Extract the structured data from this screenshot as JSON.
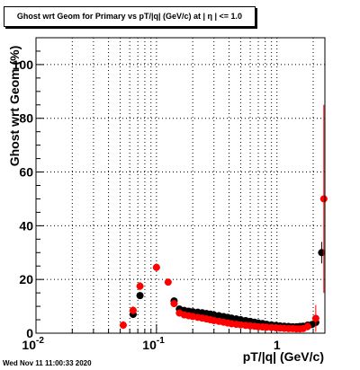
{
  "chart_data": {
    "type": "scatter",
    "title": "Ghost wrt Geom for Primary vs pT/|q| (GeV/c) at |  η | <= 1.0",
    "xlabel": "pT/|q| (GeV/c)",
    "ylabel": "Ghost wrt Geom (%)",
    "x_scale": "log",
    "xlim": [
      0.01,
      2.5
    ],
    "ylim": [
      0,
      110
    ],
    "grid": true,
    "x_tick_labels": [
      "10",
      "10",
      "1"
    ],
    "x_tick_exponents": [
      "-2",
      "-1",
      ""
    ],
    "y_tick_labels": [
      "0",
      "20",
      "40",
      "60",
      "80",
      "100"
    ],
    "y_ticks": [
      0,
      20,
      40,
      60,
      80,
      100
    ],
    "series": [
      {
        "color": "#000000",
        "marker": "circle",
        "x": [
          0.064,
          0.073,
          0.14,
          0.155,
          0.17,
          0.185,
          0.2,
          0.22,
          0.24,
          0.26,
          0.28,
          0.3,
          0.33,
          0.36,
          0.39,
          0.42,
          0.46,
          0.5,
          0.55,
          0.6,
          0.65,
          0.7,
          0.76,
          0.82,
          0.9,
          0.98,
          1.06,
          1.15,
          1.25,
          1.35,
          1.45,
          1.55,
          1.65,
          1.8,
          1.95,
          2.1,
          2.35
        ],
        "y": [
          7.0,
          14.0,
          12.0,
          9.0,
          8.5,
          8.2,
          8.0,
          7.8,
          7.6,
          7.3,
          7.1,
          6.8,
          6.5,
          6.2,
          5.9,
          5.6,
          5.3,
          5.0,
          4.7,
          4.4,
          4.1,
          3.8,
          3.6,
          3.3,
          3.1,
          2.9,
          2.7,
          2.6,
          2.5,
          2.4,
          2.4,
          2.5,
          2.6,
          3.0,
          3.2,
          4.0,
          30.0
        ],
        "y_err": [
          0.8,
          1.0,
          0.7,
          0.5,
          0.4,
          0.4,
          0.4,
          0.4,
          0.3,
          0.3,
          0.3,
          0.3,
          0.3,
          0.3,
          0.3,
          0.3,
          0.3,
          0.3,
          0.3,
          0.3,
          0.3,
          0.3,
          0.3,
          0.3,
          0.3,
          0.3,
          0.3,
          0.3,
          0.3,
          0.3,
          0.3,
          0.3,
          0.4,
          0.5,
          0.6,
          1.5,
          4.0
        ]
      },
      {
        "color": "#ff0000",
        "marker": "circle",
        "x": [
          0.053,
          0.064,
          0.073,
          0.1,
          0.125,
          0.14,
          0.155,
          0.17,
          0.185,
          0.2,
          0.22,
          0.24,
          0.26,
          0.28,
          0.3,
          0.33,
          0.36,
          0.39,
          0.42,
          0.46,
          0.5,
          0.55,
          0.6,
          0.65,
          0.7,
          0.76,
          0.82,
          0.9,
          0.98,
          1.06,
          1.15,
          1.25,
          1.35,
          1.45,
          1.55,
          1.65,
          1.8,
          2.1,
          2.45
        ],
        "y": [
          3.0,
          8.5,
          17.5,
          24.5,
          19.0,
          11.0,
          7.5,
          6.8,
          6.5,
          6.2,
          5.9,
          5.6,
          5.3,
          5.0,
          4.7,
          4.4,
          4.1,
          3.8,
          3.5,
          3.3,
          3.1,
          2.9,
          2.7,
          2.6,
          2.4,
          2.3,
          2.2,
          2.1,
          2.0,
          1.9,
          1.8,
          1.7,
          1.7,
          1.6,
          1.6,
          1.7,
          2.5,
          5.5,
          50.0
        ],
        "y_err": [
          1.5,
          1.5,
          1.5,
          1.5,
          1.0,
          0.8,
          0.5,
          0.4,
          0.4,
          0.4,
          0.3,
          0.3,
          0.3,
          0.3,
          0.3,
          0.3,
          0.3,
          0.3,
          0.3,
          0.3,
          0.3,
          0.3,
          0.3,
          0.3,
          0.3,
          0.3,
          0.3,
          0.3,
          0.3,
          0.3,
          0.3,
          0.3,
          0.3,
          0.3,
          0.3,
          0.4,
          1.5,
          5.0,
          35.0
        ]
      }
    ]
  },
  "footer": {
    "timestamp": "Wed Nov 11 11:00:33 2020"
  }
}
